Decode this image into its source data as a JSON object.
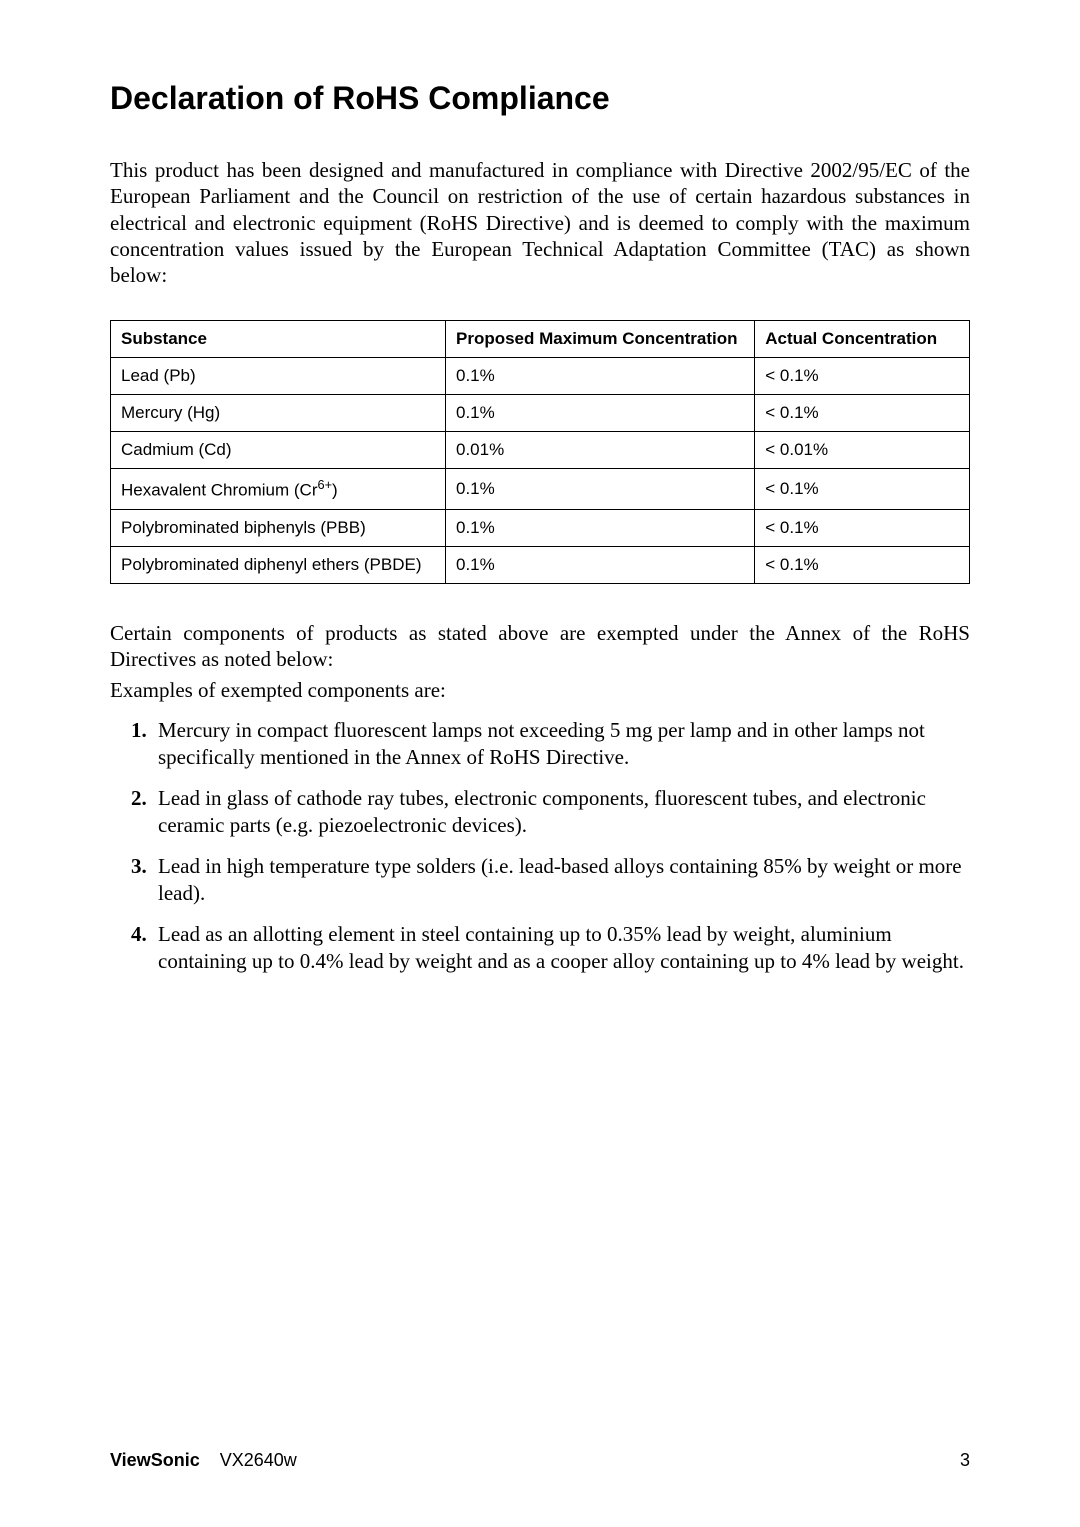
{
  "title": "Declaration of RoHS Compliance",
  "intro": "This product has been designed and manufactured in compliance with Directive 2002/95/EC of the European Parliament and the Council on restriction of the use of certain hazardous substances in electrical and electronic equipment (RoHS Directive) and is deemed to comply with the maximum concentration values issued by the European Technical Adaptation Committee (TAC) as shown below:",
  "table": {
    "columns": [
      "Substance",
      "Proposed Maximum Concentration",
      "Actual Concentration"
    ],
    "col_widths": [
      "39%",
      "36%",
      "25%"
    ],
    "rows": [
      {
        "substance_html": "Lead (Pb)",
        "proposed": "0.1%",
        "actual": "< 0.1%"
      },
      {
        "substance_html": "Mercury (Hg)",
        "proposed": "0.1%",
        "actual": "< 0.1%"
      },
      {
        "substance_html": "Cadmium (Cd)",
        "proposed": "0.01%",
        "actual": "< 0.01%"
      },
      {
        "substance_html": "Hexavalent Chromium (Cr<span class=\"sup\">6+</span>)",
        "proposed": "0.1%",
        "actual": "< 0.1%"
      },
      {
        "substance_html": "Polybrominated biphenyls (PBB)",
        "proposed": "0.1%",
        "actual": "< 0.1%"
      },
      {
        "substance_html": "Polybrominated diphenyl ethers (PBDE)",
        "proposed": "0.1%",
        "actual": "< 0.1%"
      }
    ]
  },
  "post_table": "Certain components of products as stated above are exempted under the Annex of the RoHS Directives as noted below:",
  "examples_line": "Examples of exempted components are:",
  "exemptions": [
    "Mercury in compact fluorescent lamps not exceeding 5 mg per lamp and in other lamps not specifically mentioned in the Annex of RoHS Directive.",
    "Lead in glass of cathode ray tubes, electronic components, fluorescent tubes, and electronic ceramic parts (e.g. piezoelectronic devices).",
    "Lead in high temperature type solders (i.e. lead-based alloys containing 85% by weight or more lead).",
    "Lead as an allotting element in steel containing up to 0.35% lead by weight, aluminium containing up to 0.4% lead by weight and as a cooper alloy containing up to 4% lead by weight."
  ],
  "footer": {
    "brand": "ViewSonic",
    "model": "VX2640w",
    "page_number": "3"
  }
}
